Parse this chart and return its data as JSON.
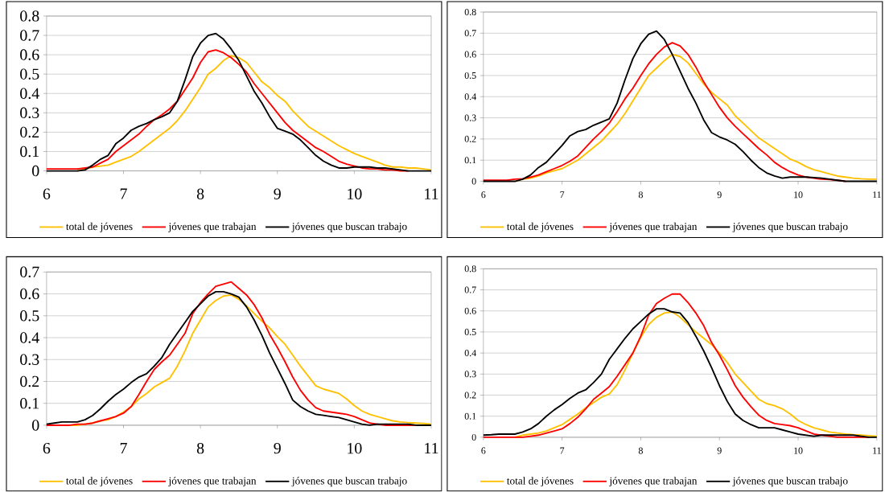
{
  "chart_data": [
    {
      "type": "line",
      "xlim": [
        6,
        11
      ],
      "xticks": [
        6,
        7,
        8,
        9,
        10,
        11
      ],
      "ylim": [
        0,
        0.8
      ],
      "yticks": [
        0,
        0.1,
        0.2,
        0.3,
        0.4,
        0.5,
        0.6,
        0.7,
        0.8
      ],
      "grid": "y",
      "legend": "bottom",
      "x": [
        6.0,
        6.1,
        6.2,
        6.3,
        6.4,
        6.5,
        6.6,
        6.7,
        6.8,
        6.9,
        7.0,
        7.1,
        7.2,
        7.3,
        7.4,
        7.5,
        7.6,
        7.7,
        7.8,
        7.9,
        8.0,
        8.1,
        8.2,
        8.3,
        8.4,
        8.5,
        8.6,
        8.7,
        8.8,
        8.9,
        9.0,
        9.1,
        9.2,
        9.3,
        9.4,
        9.5,
        9.6,
        9.7,
        9.8,
        9.9,
        10.0,
        10.1,
        10.2,
        10.3,
        10.4,
        10.5,
        10.6,
        10.7,
        10.8,
        10.9,
        11.0
      ],
      "series": [
        {
          "name": "total de jóvenes",
          "color": "#ffc000",
          "values": [
            null,
            null,
            null,
            null,
            0,
            0.01,
            0.02,
            0.025,
            0.03,
            0.045,
            0.06,
            0.075,
            0.1,
            0.13,
            0.16,
            0.19,
            0.22,
            0.26,
            0.31,
            0.37,
            0.43,
            0.5,
            0.53,
            0.57,
            0.595,
            0.585,
            0.56,
            0.51,
            0.46,
            0.43,
            0.39,
            0.36,
            0.31,
            0.27,
            0.23,
            0.205,
            0.18,
            0.155,
            0.13,
            0.11,
            0.09,
            0.075,
            0.06,
            0.045,
            0.03,
            0.02,
            0.02,
            0.015,
            0.015,
            0.01,
            0.005
          ]
        },
        {
          "name": "jóvenes que trabajan",
          "color": "#ff0000",
          "values": [
            0.01,
            0.01,
            0.01,
            0.01,
            0.01,
            0.015,
            0.02,
            0.04,
            0.06,
            0.1,
            0.13,
            0.16,
            0.19,
            0.23,
            0.265,
            0.29,
            0.32,
            0.36,
            0.42,
            0.48,
            0.56,
            0.615,
            0.625,
            0.61,
            0.585,
            0.55,
            0.51,
            0.45,
            0.4,
            0.35,
            0.3,
            0.25,
            0.21,
            0.18,
            0.15,
            0.12,
            0.1,
            0.075,
            0.05,
            0.035,
            0.025,
            0.015,
            0.01,
            0.01,
            0.005,
            0.005,
            0,
            0,
            null,
            null,
            null
          ]
        },
        {
          "name": "jóvenes que buscan trabajo",
          "color": "#000000",
          "values": [
            0,
            0,
            0,
            0,
            0,
            0.005,
            0.03,
            0.06,
            0.08,
            0.14,
            0.17,
            0.21,
            0.23,
            0.245,
            0.265,
            0.28,
            0.3,
            0.36,
            0.47,
            0.59,
            0.66,
            0.7,
            0.71,
            0.68,
            0.63,
            0.57,
            0.49,
            0.41,
            0.35,
            0.28,
            0.22,
            0.205,
            0.19,
            0.16,
            0.12,
            0.08,
            0.05,
            0.03,
            0.015,
            0.015,
            0.02,
            0.02,
            0.02,
            0.015,
            0.015,
            0.01,
            0.005,
            0,
            0,
            0,
            0
          ]
        }
      ]
    },
    {
      "type": "line",
      "xlim": [
        6,
        11
      ],
      "xticks": [
        6,
        7,
        8,
        9,
        10,
        11
      ],
      "ylim": [
        0,
        0.8
      ],
      "yticks": [
        0,
        0.1,
        0.2,
        0.3,
        0.4,
        0.5,
        0.6,
        0.7,
        0.8
      ],
      "grid": "y",
      "legend": "bottom",
      "x": [
        6.0,
        6.1,
        6.2,
        6.3,
        6.4,
        6.5,
        6.6,
        6.7,
        6.8,
        6.9,
        7.0,
        7.1,
        7.2,
        7.3,
        7.4,
        7.5,
        7.6,
        7.7,
        7.8,
        7.9,
        8.0,
        8.1,
        8.2,
        8.3,
        8.4,
        8.5,
        8.6,
        8.7,
        8.8,
        8.9,
        9.0,
        9.1,
        9.2,
        9.3,
        9.4,
        9.5,
        9.6,
        9.7,
        9.8,
        9.9,
        10.0,
        10.1,
        10.2,
        10.3,
        10.4,
        10.5,
        10.6,
        10.7,
        10.8,
        10.9,
        11.0
      ],
      "series": [
        {
          "name": "total de jóvenes",
          "color": "#ffc000",
          "values": [
            null,
            null,
            null,
            null,
            0,
            0.01,
            0.015,
            0.025,
            0.04,
            0.05,
            0.06,
            0.08,
            0.1,
            0.13,
            0.16,
            0.19,
            0.23,
            0.27,
            0.32,
            0.38,
            0.44,
            0.5,
            0.535,
            0.57,
            0.6,
            0.59,
            0.56,
            0.51,
            0.46,
            0.42,
            0.39,
            0.36,
            0.31,
            0.275,
            0.24,
            0.205,
            0.18,
            0.155,
            0.13,
            0.105,
            0.09,
            0.07,
            0.055,
            0.045,
            0.035,
            0.025,
            0.02,
            0.015,
            0.012,
            0.01,
            0.01
          ]
        },
        {
          "name": "jóvenes que trabajan",
          "color": "#ff0000",
          "values": [
            0.005,
            0.005,
            0.005,
            0.005,
            0.01,
            0.012,
            0.02,
            0.03,
            0.045,
            0.06,
            0.075,
            0.095,
            0.12,
            0.16,
            0.2,
            0.235,
            0.275,
            0.33,
            0.39,
            0.44,
            0.5,
            0.555,
            0.6,
            0.635,
            0.655,
            0.64,
            0.6,
            0.54,
            0.47,
            0.41,
            0.35,
            0.3,
            0.26,
            0.225,
            0.19,
            0.155,
            0.125,
            0.09,
            0.065,
            0.045,
            0.03,
            0.02,
            0.015,
            0.01,
            0.008,
            0.005,
            0,
            null,
            null,
            null,
            null
          ]
        },
        {
          "name": "jóvenes que buscan trabajo",
          "color": "#000000",
          "values": [
            0,
            0,
            0,
            0,
            0,
            0.01,
            0.03,
            0.065,
            0.09,
            0.13,
            0.17,
            0.215,
            0.235,
            0.245,
            0.265,
            0.28,
            0.295,
            0.37,
            0.48,
            0.58,
            0.65,
            0.695,
            0.71,
            0.67,
            0.6,
            0.52,
            0.44,
            0.37,
            0.29,
            0.23,
            0.21,
            0.195,
            0.175,
            0.14,
            0.1,
            0.065,
            0.04,
            0.025,
            0.015,
            0.02,
            0.02,
            0.02,
            0.018,
            0.015,
            0.01,
            0.005,
            0,
            0,
            0,
            0,
            0
          ]
        }
      ]
    },
    {
      "type": "line",
      "xlim": [
        6,
        11
      ],
      "xticks": [
        6,
        7,
        8,
        9,
        10,
        11
      ],
      "ylim": [
        0,
        0.7
      ],
      "yticks": [
        0,
        0.1,
        0.2,
        0.3,
        0.4,
        0.5,
        0.6,
        0.7
      ],
      "grid": "y",
      "legend": "bottom",
      "x": [
        6.0,
        6.1,
        6.2,
        6.3,
        6.4,
        6.5,
        6.6,
        6.7,
        6.8,
        6.9,
        7.0,
        7.1,
        7.2,
        7.3,
        7.4,
        7.5,
        7.6,
        7.7,
        7.8,
        7.9,
        8.0,
        8.1,
        8.2,
        8.3,
        8.4,
        8.5,
        8.6,
        8.7,
        8.8,
        8.9,
        9.0,
        9.1,
        9.2,
        9.3,
        9.4,
        9.5,
        9.6,
        9.7,
        9.8,
        9.9,
        10.0,
        10.1,
        10.2,
        10.3,
        10.4,
        10.5,
        10.6,
        10.7,
        10.8,
        10.9,
        11.0
      ],
      "series": [
        {
          "name": "total de jóvenes",
          "color": "#ffc000",
          "values": [
            null,
            null,
            null,
            0,
            0,
            0.005,
            0.01,
            0.02,
            0.025,
            0.04,
            0.06,
            0.085,
            0.12,
            0.145,
            0.175,
            0.195,
            0.215,
            0.27,
            0.34,
            0.42,
            0.48,
            0.54,
            0.57,
            0.59,
            0.595,
            0.575,
            0.545,
            0.51,
            0.475,
            0.445,
            0.405,
            0.37,
            0.32,
            0.27,
            0.225,
            0.18,
            0.165,
            0.155,
            0.145,
            0.12,
            0.09,
            0.065,
            0.05,
            0.04,
            0.03,
            0.02,
            0.015,
            0.012,
            0.01,
            0.008,
            0.005
          ]
        },
        {
          "name": "jóvenes que trabajan",
          "color": "#ff0000",
          "values": [
            0,
            0,
            0,
            0,
            0.005,
            0.005,
            0.01,
            0.02,
            0.03,
            0.04,
            0.055,
            0.085,
            0.14,
            0.2,
            0.255,
            0.29,
            0.32,
            0.37,
            0.42,
            0.51,
            0.56,
            0.6,
            0.635,
            0.645,
            0.655,
            0.625,
            0.595,
            0.55,
            0.49,
            0.415,
            0.355,
            0.29,
            0.22,
            0.16,
            0.115,
            0.08,
            0.065,
            0.06,
            0.055,
            0.05,
            0.04,
            0.025,
            0.01,
            0.005,
            0,
            0,
            0,
            0,
            0,
            null,
            null
          ]
        },
        {
          "name": "jóvenes que buscan trabajo",
          "color": "#000000",
          "values": [
            0.005,
            0.01,
            0.015,
            0.015,
            0.015,
            0.025,
            0.045,
            0.075,
            0.11,
            0.14,
            0.165,
            0.195,
            0.22,
            0.235,
            0.27,
            0.31,
            0.37,
            0.42,
            0.47,
            0.52,
            0.555,
            0.59,
            0.61,
            0.61,
            0.6,
            0.585,
            0.54,
            0.48,
            0.41,
            0.33,
            0.26,
            0.19,
            0.115,
            0.085,
            0.065,
            0.05,
            0.045,
            0.04,
            0.035,
            0.025,
            0.015,
            0.005,
            0,
            0.005,
            0.005,
            0.005,
            0.005,
            0.005,
            0,
            0,
            0
          ]
        }
      ]
    },
    {
      "type": "line",
      "xlim": [
        6,
        11
      ],
      "xticks": [
        6,
        7,
        8,
        9,
        10,
        11
      ],
      "ylim": [
        0,
        0.8
      ],
      "yticks": [
        0,
        0.1,
        0.2,
        0.3,
        0.4,
        0.5,
        0.6,
        0.7,
        0.8
      ],
      "grid": "y",
      "legend": "bottom",
      "x": [
        6.0,
        6.1,
        6.2,
        6.3,
        6.4,
        6.5,
        6.6,
        6.7,
        6.8,
        6.9,
        7.0,
        7.1,
        7.2,
        7.3,
        7.4,
        7.5,
        7.6,
        7.7,
        7.8,
        7.9,
        8.0,
        8.1,
        8.2,
        8.3,
        8.4,
        8.5,
        8.6,
        8.7,
        8.8,
        8.9,
        9.0,
        9.1,
        9.2,
        9.3,
        9.4,
        9.5,
        9.6,
        9.7,
        9.8,
        9.9,
        10.0,
        10.1,
        10.2,
        10.3,
        10.4,
        10.5,
        10.6,
        10.7,
        10.8,
        10.9,
        11.0
      ],
      "series": [
        {
          "name": "total de jóvenes",
          "color": "#ffc000",
          "values": [
            null,
            null,
            null,
            null,
            0,
            0.01,
            0.015,
            0.02,
            0.03,
            0.045,
            0.06,
            0.085,
            0.11,
            0.14,
            0.165,
            0.19,
            0.205,
            0.25,
            0.32,
            0.4,
            0.475,
            0.535,
            0.57,
            0.59,
            0.595,
            0.57,
            0.535,
            0.5,
            0.47,
            0.44,
            0.4,
            0.355,
            0.3,
            0.26,
            0.22,
            0.18,
            0.16,
            0.15,
            0.135,
            0.11,
            0.08,
            0.06,
            0.045,
            0.035,
            0.025,
            0.02,
            0.015,
            0.012,
            0.01,
            0.008,
            0.005
          ]
        },
        {
          "name": "jóvenes que trabajan",
          "color": "#ff0000",
          "values": [
            0,
            0,
            0,
            0,
            0,
            0,
            0.005,
            0.01,
            0.02,
            0.03,
            0.04,
            0.065,
            0.095,
            0.135,
            0.18,
            0.21,
            0.24,
            0.29,
            0.345,
            0.4,
            0.48,
            0.58,
            0.635,
            0.66,
            0.68,
            0.68,
            0.64,
            0.59,
            0.53,
            0.45,
            0.39,
            0.32,
            0.245,
            0.19,
            0.145,
            0.105,
            0.08,
            0.065,
            0.06,
            0.055,
            0.045,
            0.03,
            0.015,
            0.01,
            0.005,
            0,
            0,
            0,
            0,
            0,
            null
          ]
        },
        {
          "name": "jóvenes que buscan trabajo",
          "color": "#000000",
          "values": [
            0.01,
            0.012,
            0.015,
            0.015,
            0.015,
            0.025,
            0.04,
            0.065,
            0.1,
            0.13,
            0.155,
            0.185,
            0.21,
            0.225,
            0.26,
            0.3,
            0.37,
            0.42,
            0.47,
            0.515,
            0.55,
            0.585,
            0.61,
            0.61,
            0.595,
            0.59,
            0.545,
            0.48,
            0.41,
            0.33,
            0.245,
            0.17,
            0.11,
            0.08,
            0.06,
            0.045,
            0.045,
            0.045,
            0.035,
            0.025,
            0.015,
            0.01,
            0.005,
            0.01,
            0.01,
            0.01,
            0.01,
            0.01,
            0.005,
            0,
            0
          ]
        }
      ]
    }
  ]
}
